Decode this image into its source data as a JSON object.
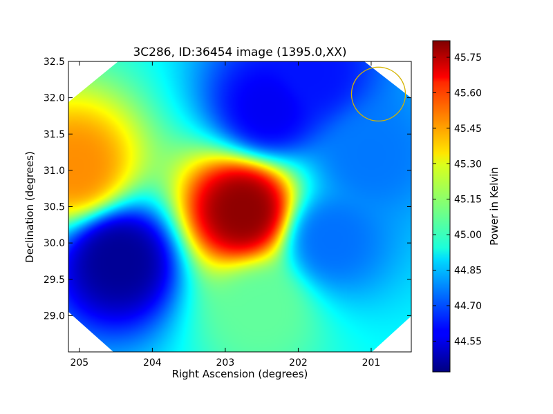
{
  "chart_data": {
    "type": "heatmap",
    "title": "3C286, ID:36454 image (1395.0,XX)",
    "xlabel": "Right Ascension (degrees)",
    "ylabel": "Declination (degrees)",
    "colorbar_label": "Power in Kelvin",
    "xlim": [
      205.15,
      200.45
    ],
    "ylim": [
      28.5,
      32.5
    ],
    "x_ticks": [
      205,
      204,
      203,
      202,
      201
    ],
    "x_tick_labels": [
      "205",
      "204",
      "203",
      "202",
      "201"
    ],
    "y_ticks": [
      29.0,
      29.5,
      30.0,
      30.5,
      31.0,
      31.5,
      32.0,
      32.5
    ],
    "y_tick_labels": [
      "29.0",
      "29.5",
      "30.0",
      "30.5",
      "31.0",
      "31.5",
      "32.0",
      "32.5"
    ],
    "colorbar_range": [
      44.42,
      45.82
    ],
    "colorbar_ticks": [
      44.55,
      44.7,
      44.85,
      45.0,
      45.15,
      45.3,
      45.45,
      45.6,
      45.75
    ],
    "colorbar_tick_labels": [
      "44.55",
      "44.70",
      "44.85",
      "45.00",
      "45.15",
      "45.30",
      "45.45",
      "45.60",
      "45.75"
    ],
    "colormap": "jet",
    "background_value": 44.95,
    "features": [
      {
        "kind": "peak",
        "ra": 202.75,
        "dec": 30.45,
        "value": 45.8
      },
      {
        "kind": "high",
        "ra": 205.05,
        "dec": 31.05,
        "value": 45.45
      },
      {
        "kind": "low",
        "ra": 204.45,
        "dec": 29.75,
        "value": 44.45
      },
      {
        "kind": "low",
        "ra": 202.4,
        "dec": 31.85,
        "value": 44.58
      },
      {
        "kind": "low",
        "ra": 201.8,
        "dec": 32.35,
        "value": 44.62
      },
      {
        "kind": "low",
        "ra": 201.55,
        "dec": 30.05,
        "value": 44.75
      },
      {
        "kind": "low",
        "ra": 201.0,
        "dec": 31.2,
        "value": 44.76
      },
      {
        "kind": "high",
        "ra": 202.5,
        "dec": 29.1,
        "value": 45.08
      }
    ],
    "beam_marker": {
      "ra": 200.9,
      "dec": 32.05,
      "radius_deg": 0.37,
      "color": "#d4b400"
    }
  }
}
